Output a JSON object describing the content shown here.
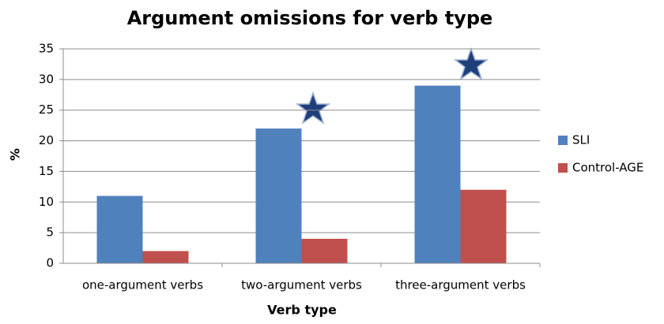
{
  "chart_data": {
    "type": "bar",
    "title": "Argument omissions for verb type",
    "x_label": "Verb type",
    "y_label": "%",
    "categories": [
      "one-argument verbs",
      "two-argument verbs",
      "three-argument verbs"
    ],
    "series": [
      {
        "name": "SLI",
        "color": "#4f81bd",
        "values": [
          11,
          22,
          29
        ]
      },
      {
        "name": "Control-AGE",
        "color": "#c0504d",
        "values": [
          2,
          4,
          12
        ]
      }
    ],
    "ylim": [
      0,
      35
    ],
    "yticks": [
      0,
      5,
      10,
      15,
      20,
      25,
      30,
      35
    ],
    "grid": true,
    "legend": "right"
  }
}
